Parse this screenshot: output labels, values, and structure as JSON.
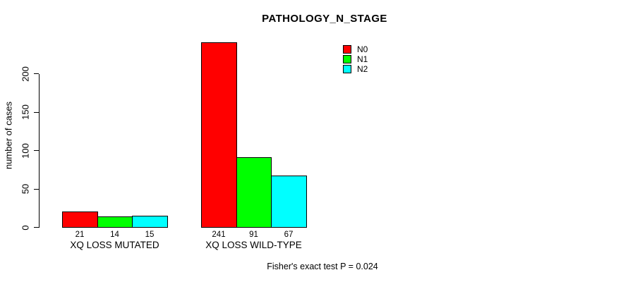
{
  "chart_data": {
    "type": "bar",
    "title": "PATHOLOGY_N_STAGE",
    "ylabel": "number of cases",
    "xlabel": "",
    "ylim": [
      0,
      200
    ],
    "yticks": [
      0,
      50,
      100,
      150,
      200
    ],
    "grid": false,
    "legend_position": "top-right-inside",
    "categories": [
      "XQ LOSS MUTATED",
      "XQ LOSS WILD-TYPE"
    ],
    "series": [
      {
        "name": "N0",
        "color": "#ff0000",
        "values": [
          21,
          241
        ]
      },
      {
        "name": "N1",
        "color": "#00ff00",
        "values": [
          14,
          91
        ]
      },
      {
        "name": "N2",
        "color": "#00ffff",
        "values": [
          15,
          67
        ]
      }
    ],
    "bar_value_labels": [
      [
        21,
        14,
        15
      ],
      [
        241,
        91,
        67
      ]
    ],
    "annotation": "Fisher's exact test P = 0.024"
  },
  "colors": {
    "background": "#ffffff",
    "text": "#000000",
    "axis": "#000000",
    "bar_border": "#000000"
  }
}
